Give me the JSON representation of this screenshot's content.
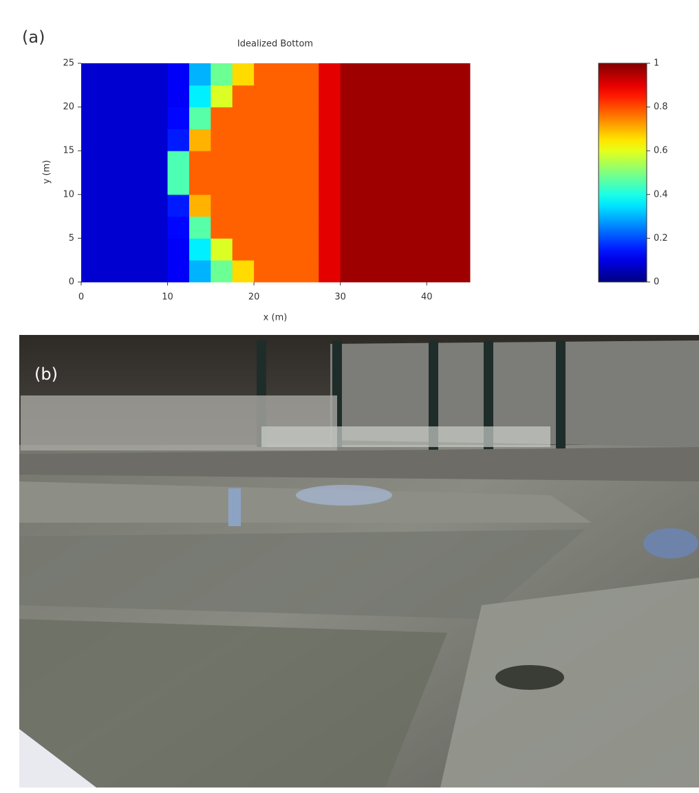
{
  "panel_a_label": "(a)",
  "chart_data": {
    "type": "heatmap",
    "title": "Idealized Bottom",
    "x_label": "x (m)",
    "y_label": "y (m)",
    "x": [
      1.25,
      3.75,
      6.25,
      8.75,
      11.25,
      13.75,
      16.25,
      18.75,
      21.25,
      23.75,
      26.25,
      28.75,
      31.25,
      33.75,
      36.25,
      38.75,
      41.25,
      43.75
    ],
    "y": [
      1.25,
      3.75,
      6.25,
      8.75,
      11.25,
      13.75,
      16.25,
      18.75,
      21.25,
      23.75
    ],
    "z": [
      [
        0.08,
        0.08,
        0.08,
        0.08,
        0.12,
        0.3,
        0.48,
        0.66,
        0.78,
        0.78,
        0.78,
        0.9,
        0.97,
        0.97,
        0.97,
        0.97,
        0.97,
        0.97
      ],
      [
        0.08,
        0.08,
        0.08,
        0.08,
        0.12,
        0.36,
        0.59,
        0.78,
        0.78,
        0.78,
        0.78,
        0.9,
        0.97,
        0.97,
        0.97,
        0.97,
        0.97,
        0.97
      ],
      [
        0.08,
        0.08,
        0.08,
        0.08,
        0.13,
        0.46,
        0.78,
        0.78,
        0.78,
        0.78,
        0.78,
        0.9,
        0.97,
        0.97,
        0.97,
        0.97,
        0.97,
        0.97
      ],
      [
        0.08,
        0.08,
        0.08,
        0.08,
        0.15,
        0.7,
        0.78,
        0.78,
        0.78,
        0.78,
        0.78,
        0.9,
        0.97,
        0.97,
        0.97,
        0.97,
        0.97,
        0.97
      ],
      [
        0.08,
        0.08,
        0.08,
        0.08,
        0.45,
        0.78,
        0.78,
        0.78,
        0.78,
        0.78,
        0.78,
        0.9,
        0.97,
        0.97,
        0.97,
        0.97,
        0.97,
        0.97
      ],
      [
        0.08,
        0.08,
        0.08,
        0.08,
        0.45,
        0.78,
        0.78,
        0.78,
        0.78,
        0.78,
        0.78,
        0.9,
        0.97,
        0.97,
        0.97,
        0.97,
        0.97,
        0.97
      ],
      [
        0.08,
        0.08,
        0.08,
        0.08,
        0.15,
        0.7,
        0.78,
        0.78,
        0.78,
        0.78,
        0.78,
        0.9,
        0.97,
        0.97,
        0.97,
        0.97,
        0.97,
        0.97
      ],
      [
        0.08,
        0.08,
        0.08,
        0.08,
        0.13,
        0.46,
        0.78,
        0.78,
        0.78,
        0.78,
        0.78,
        0.9,
        0.97,
        0.97,
        0.97,
        0.97,
        0.97,
        0.97
      ],
      [
        0.08,
        0.08,
        0.08,
        0.08,
        0.12,
        0.36,
        0.59,
        0.78,
        0.78,
        0.78,
        0.78,
        0.9,
        0.97,
        0.97,
        0.97,
        0.97,
        0.97,
        0.97
      ],
      [
        0.08,
        0.08,
        0.08,
        0.08,
        0.12,
        0.3,
        0.48,
        0.66,
        0.78,
        0.78,
        0.78,
        0.9,
        0.97,
        0.97,
        0.97,
        0.97,
        0.97,
        0.97
      ]
    ],
    "xlim": [
      0,
      45
    ],
    "ylim": [
      0,
      25
    ],
    "xticks": [
      0,
      10,
      20,
      30,
      40
    ],
    "yticks": [
      0,
      5,
      10,
      15,
      20,
      25
    ],
    "colormap": "jet",
    "clim": [
      0,
      1
    ],
    "cticks": [
      0,
      0.2,
      0.4,
      0.6,
      0.8,
      1
    ]
  },
  "panel_b_label": "(b)"
}
